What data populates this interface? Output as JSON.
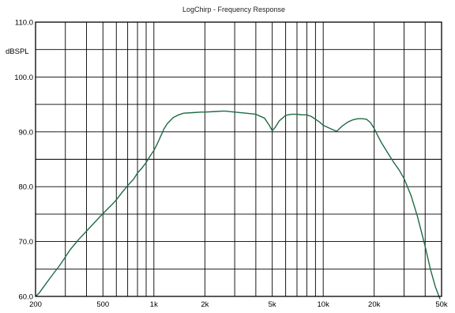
{
  "chart_data": {
    "type": "line",
    "title": "LogChirp - Frequency Response",
    "ylabel": "dBSPL",
    "xscale": "log",
    "xlim": [
      200,
      50000
    ],
    "ylim": [
      60,
      110
    ],
    "grid": true,
    "y_ticks": [
      {
        "value": 60,
        "label": "60.0"
      },
      {
        "value": 70,
        "label": "70.0"
      },
      {
        "value": 80,
        "label": "80.0"
      },
      {
        "value": 90,
        "label": "90.0"
      },
      {
        "value": 100,
        "label": "100.0"
      },
      {
        "value": 110,
        "label": "110.0"
      }
    ],
    "y_gridlines": [
      60,
      65,
      70,
      75,
      80,
      85,
      90,
      95,
      100,
      105,
      110
    ],
    "x_ticks": [
      {
        "value": 200,
        "label": "200"
      },
      {
        "value": 500,
        "label": "500"
      },
      {
        "value": 1000,
        "label": "1k"
      },
      {
        "value": 2000,
        "label": "2k"
      },
      {
        "value": 5000,
        "label": "5k"
      },
      {
        "value": 10000,
        "label": "10k"
      },
      {
        "value": 20000,
        "label": "20k"
      },
      {
        "value": 50000,
        "label": "50k"
      }
    ],
    "x_gridlines": [
      200,
      300,
      400,
      500,
      600,
      700,
      800,
      900,
      1000,
      2000,
      3000,
      4000,
      5000,
      6000,
      7000,
      8000,
      9000,
      10000,
      20000,
      30000,
      40000,
      50000
    ],
    "series": [
      {
        "color": "#1f6b45",
        "x": [
          200,
          210,
          230,
          250,
          280,
          320,
          360,
          400,
          450,
          500,
          560,
          600,
          650,
          700,
          760,
          800,
          850,
          900,
          950,
          1000,
          1050,
          1100,
          1150,
          1200,
          1300,
          1400,
          1500,
          1700,
          1900,
          2000,
          2300,
          2600,
          3000,
          3500,
          4000,
          4500,
          4800,
          5000,
          5200,
          5500,
          6000,
          6500,
          7000,
          7500,
          8000,
          8500,
          9000,
          9500,
          10000,
          11000,
          12000,
          13000,
          14000,
          15000,
          16000,
          17000,
          18000,
          19000,
          20000,
          21000,
          22000,
          24000,
          26000,
          28000,
          30000,
          33000,
          36000,
          40000,
          43000,
          46000,
          49000
        ],
        "y": [
          60,
          60.6,
          62.3,
          63.8,
          65.8,
          68.5,
          70.4,
          71.9,
          73.6,
          75.1,
          76.6,
          77.6,
          79.0,
          80.2,
          81.4,
          82.5,
          83.4,
          84.4,
          85.6,
          86.6,
          87.9,
          89.3,
          90.6,
          91.5,
          92.6,
          93.1,
          93.4,
          93.5,
          93.6,
          93.6,
          93.7,
          93.8,
          93.6,
          93.4,
          93.2,
          92.5,
          91.2,
          90.2,
          90.8,
          92.0,
          93.0,
          93.2,
          93.2,
          93.1,
          93.1,
          92.8,
          92.3,
          91.8,
          91.2,
          90.6,
          90.1,
          91.1,
          91.8,
          92.2,
          92.4,
          92.4,
          92.3,
          91.7,
          90.6,
          89.3,
          88.1,
          86.2,
          84.5,
          83.1,
          81.5,
          78.4,
          74.6,
          69.1,
          64.9,
          61.7,
          59.5
        ]
      }
    ]
  }
}
